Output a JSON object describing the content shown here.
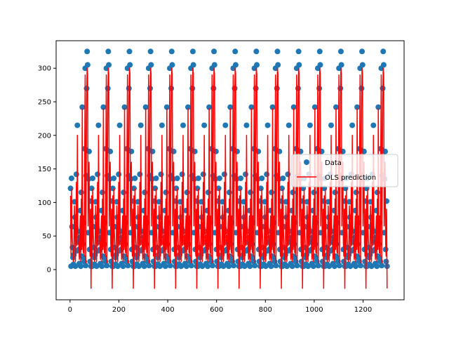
{
  "chart_data": {
    "type": "scatter",
    "title": "",
    "xlabel": "",
    "ylabel": "",
    "xlim": [
      -57,
      1368
    ],
    "ylim": [
      -45,
      341
    ],
    "xticks": [
      0,
      200,
      400,
      600,
      800,
      1000,
      1200
    ],
    "yticks": [
      0,
      50,
      100,
      150,
      200,
      250,
      300
    ],
    "grid": false,
    "legend": {
      "position": "center-right",
      "entries": [
        "Data",
        "OLS prediction"
      ]
    },
    "period": 86.6,
    "cycles": 15,
    "cycle_start": 2,
    "series": [
      {
        "name": "Data",
        "kind": "scatter",
        "color": "#1f77b4",
        "cycle_profile": {
          "x_offset": [
            0,
            2,
            4,
            6,
            8,
            10,
            12,
            14,
            16,
            18,
            20,
            22,
            24,
            26,
            28,
            30,
            32,
            34,
            36,
            38,
            40,
            42,
            44,
            46,
            48,
            50,
            52,
            54,
            56,
            58,
            60,
            62,
            64,
            66,
            68,
            70,
            72,
            74,
            76,
            78,
            80,
            82,
            84
          ],
          "y": [
            121,
            5,
            136,
            64,
            33,
            18,
            8,
            22,
            101,
            78,
            5,
            62,
            142,
            28,
            215,
            57,
            41,
            30,
            9,
            48,
            88,
            5,
            115,
            20,
            242,
            38,
            18,
            70,
            12,
            180,
            300,
            6,
            140,
            270,
            325,
            305,
            55,
            135,
            176,
            30,
            12,
            102,
            5
          ]
        }
      },
      {
        "name": "OLS prediction",
        "kind": "line",
        "color": "#ff0000",
        "cycle_profile": {
          "x_offset": [
            0,
            2,
            4,
            6,
            8,
            10,
            12,
            14,
            16,
            18,
            20,
            22,
            24,
            26,
            28,
            30,
            32,
            34,
            36,
            38,
            40,
            42,
            44,
            46,
            48,
            50,
            52,
            54,
            56,
            58,
            60,
            62,
            64,
            66,
            68,
            70,
            72,
            74,
            76,
            78,
            80,
            82,
            84
          ],
          "y": [
            110,
            20,
            120,
            58,
            40,
            25,
            12,
            35,
            95,
            70,
            12,
            50,
            130,
            36,
            200,
            62,
            45,
            35,
            15,
            55,
            80,
            12,
            105,
            30,
            240,
            45,
            25,
            80,
            20,
            175,
            290,
            10,
            130,
            255,
            300,
            292,
            65,
            120,
            160,
            40,
            20,
            90,
            -28
          ]
        }
      }
    ]
  }
}
